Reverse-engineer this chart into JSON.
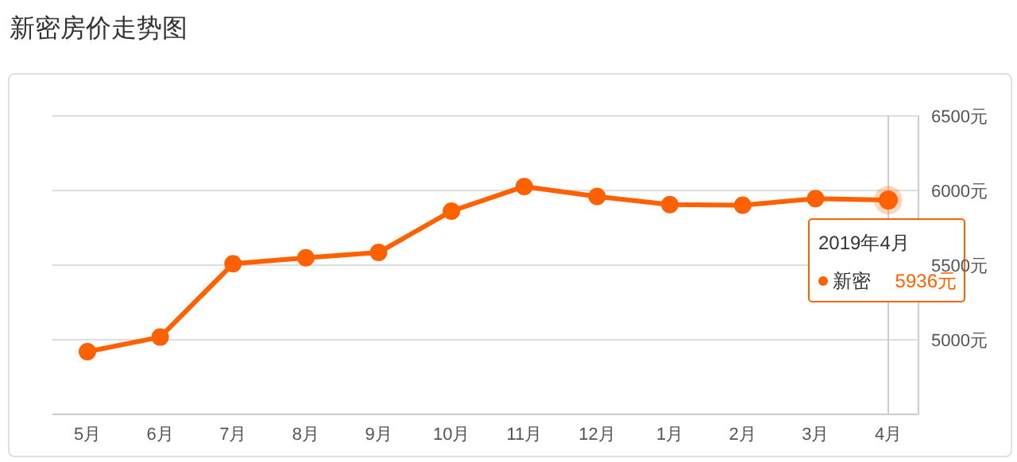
{
  "chart_data": {
    "type": "line",
    "title": "新密房价走势图",
    "categories": [
      "5月",
      "6月",
      "7月",
      "8月",
      "9月",
      "10月",
      "11月",
      "12月",
      "1月",
      "2月",
      "3月",
      "4月"
    ],
    "series": [
      {
        "name": "新密",
        "color": "#ff6000",
        "values": [
          4920,
          5018,
          5509,
          5549,
          5585,
          5862,
          6027,
          5960,
          5906,
          5902,
          5946,
          5936
        ],
        "value_labels": [
          null,
          null,
          null,
          null,
          null,
          null,
          null,
          null,
          null,
          null,
          null,
          "5936元"
        ]
      }
    ],
    "ylim": [
      4500,
      6500
    ],
    "yticks": [
      {
        "value": 5000,
        "label": "5000元"
      },
      {
        "value": 5500,
        "label": "5500元"
      },
      {
        "value": 6000,
        "label": "6000元"
      },
      {
        "value": 6500,
        "label": "6500元"
      }
    ],
    "grid": "y",
    "marker": "circle",
    "line_style": "solid",
    "legend": "right",
    "ref_lines": [
      {
        "axis": "x",
        "value": "4月",
        "color": "#cccccc"
      }
    ],
    "annotations": [
      {
        "text": "2019年4月",
        "x": "4月",
        "y": 5936
      }
    ]
  }
}
